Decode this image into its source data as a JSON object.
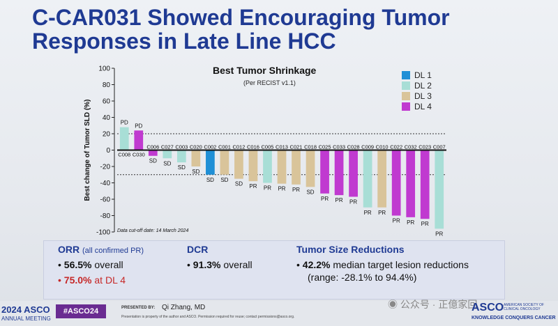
{
  "slide": {
    "title_line1": "C-CAR031 Showed Encouraging Tumor",
    "title_line2": "Responses in Late Line HCC"
  },
  "chart_data": {
    "type": "bar",
    "title": "Best Tumor Shrinkage",
    "subtitle": "(Per RECIST v1.1)",
    "ylabel": "Best change of Tumor SLD (%)",
    "ylim": [
      -100,
      100
    ],
    "yticks": [
      100,
      80,
      60,
      40,
      20,
      0,
      -20,
      -40,
      -60,
      -80,
      -100
    ],
    "reference_lines": [
      20,
      -30
    ],
    "cutoff_note": "Data cut-off date: 14 March 2024",
    "legend": [
      {
        "name": "DL 1",
        "color": "#1f8fd6"
      },
      {
        "name": "DL 2",
        "color": "#a8ded6"
      },
      {
        "name": "DL 3",
        "color": "#d9c49a"
      },
      {
        "name": "DL 4",
        "color": "#c03ad0"
      }
    ],
    "bars": [
      {
        "id": "C008",
        "value": 28,
        "dl": 2,
        "response": "PD"
      },
      {
        "id": "C030",
        "value": 24,
        "dl": 4,
        "response": "PD"
      },
      {
        "id": "C006",
        "value": -7,
        "dl": 4,
        "response": "SD"
      },
      {
        "id": "C027",
        "value": -10,
        "dl": 2,
        "response": "SD"
      },
      {
        "id": "C003",
        "value": -15,
        "dl": 2,
        "response": "SD"
      },
      {
        "id": "C020",
        "value": -20,
        "dl": 3,
        "response": "SD"
      },
      {
        "id": "C002",
        "value": -30,
        "dl": 1,
        "response": "SD"
      },
      {
        "id": "C001",
        "value": -30,
        "dl": 3,
        "response": "SD"
      },
      {
        "id": "C012",
        "value": -35,
        "dl": 3,
        "response": "SD"
      },
      {
        "id": "C016",
        "value": -38,
        "dl": 3,
        "response": "PR"
      },
      {
        "id": "C005",
        "value": -40,
        "dl": 2,
        "response": "PR"
      },
      {
        "id": "C013",
        "value": -41,
        "dl": 3,
        "response": "PR"
      },
      {
        "id": "C021",
        "value": -42,
        "dl": 3,
        "response": "PR"
      },
      {
        "id": "C018",
        "value": -45,
        "dl": 3,
        "response": "SD"
      },
      {
        "id": "C025",
        "value": -53,
        "dl": 4,
        "response": "PR"
      },
      {
        "id": "C033",
        "value": -55,
        "dl": 4,
        "response": "PR"
      },
      {
        "id": "C028",
        "value": -57,
        "dl": 4,
        "response": "PR"
      },
      {
        "id": "C009",
        "value": -70,
        "dl": 2,
        "response": "PR"
      },
      {
        "id": "C010",
        "value": -70,
        "dl": 3,
        "response": "PR"
      },
      {
        "id": "C022",
        "value": -80,
        "dl": 4,
        "response": "PR"
      },
      {
        "id": "C032",
        "value": -82,
        "dl": 4,
        "response": "PR"
      },
      {
        "id": "C023",
        "value": -84,
        "dl": 4,
        "response": "PR"
      },
      {
        "id": "C007",
        "value": -96,
        "dl": 2,
        "response": "PR"
      }
    ]
  },
  "summary": {
    "orr_title": "ORR",
    "orr_note": "(all confirmed PR)",
    "orr_overall_value": "56.5%",
    "orr_overall_label": "overall",
    "orr_dl4_value": "75.0%",
    "orr_dl4_label": "at DL 4",
    "dcr_title": "DCR",
    "dcr_value": "91.3%",
    "dcr_label": "overall",
    "tsr_title": "Tumor Size Reductions",
    "tsr_value": "42.2%",
    "tsr_label": "median target lesion reductions",
    "tsr_range": "(range: -28.1% to 94.4%)"
  },
  "footer": {
    "meeting_year": "2024",
    "meeting_brand": "ASCO",
    "meeting_label": "ANNUAL MEETING",
    "hashtag": "#ASCO24",
    "presented_by_label": "PRESENTED BY:",
    "presenter": "Qi Zhang, MD",
    "disclaimer": "Presentation is property of the author and ASCO. Permission required for reuse; contact permissions@asco.org.",
    "watermark": "公众号 · 正億家回",
    "asco_logo": "ASCO",
    "asco_society": "AMERICAN SOCIETY OF CLINICAL ONCOLOGY",
    "asco_tagline": "KNOWLEDGE CONQUERS CANCER"
  },
  "colors": {
    "title": "#1f3a93",
    "accent_red": "#c62828",
    "hashtag_bg": "#6a2c91"
  }
}
